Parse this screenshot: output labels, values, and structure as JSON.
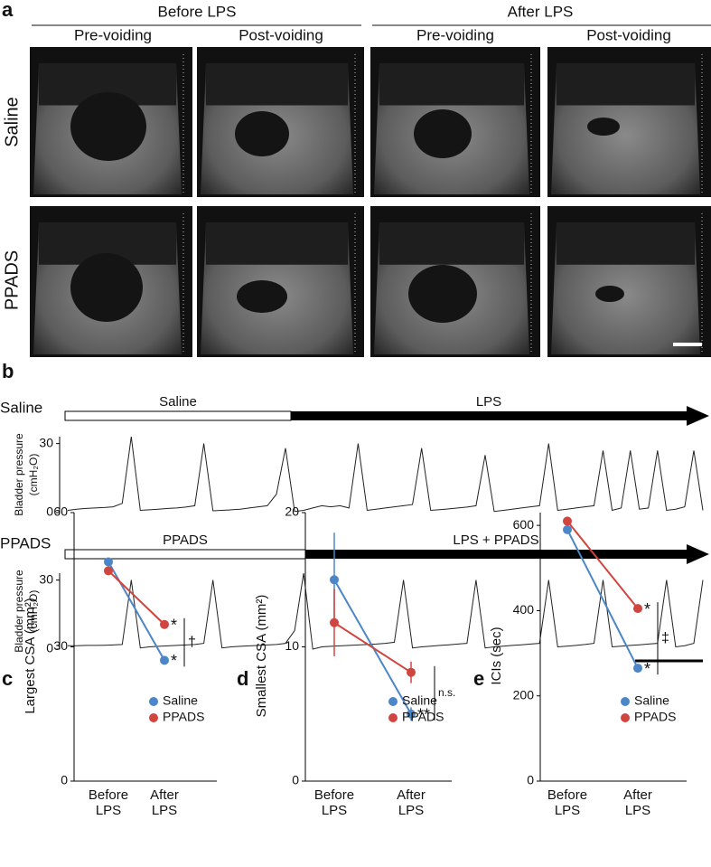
{
  "panel_labels": [
    "a",
    "b",
    "c",
    "d",
    "e"
  ],
  "panel_a": {
    "headers": [
      "Before LPS",
      "After LPS"
    ],
    "subheaders": [
      "Pre-voiding",
      "Post-voiding",
      "Pre-voiding",
      "Post-voiding"
    ],
    "rows": [
      "Saline",
      "PPADS"
    ]
  },
  "panel_b": {
    "rows": [
      {
        "label": "Saline",
        "phases": [
          "Saline",
          "LPS"
        ]
      },
      {
        "label": "PPADS",
        "phases": [
          "PPADS",
          "LPS + PPADS"
        ]
      }
    ]
  },
  "chart_data": [
    {
      "type": "trace",
      "ylabel": "Bladder pressure",
      "ylabel_unit": "(cmH₂O)",
      "ylim": [
        0,
        33
      ],
      "yticks": [
        0,
        30
      ],
      "color": "#222222",
      "values": [
        1,
        1.5,
        1.8,
        2,
        2.2,
        2.5,
        4,
        33,
        1,
        1.2,
        1.5,
        1.8,
        2,
        2.4,
        3,
        30,
        0.8,
        1,
        1.2,
        1.5,
        2,
        2.5,
        3,
        8,
        28,
        0.5,
        1,
        2,
        3,
        2.5,
        3,
        2,
        30,
        1,
        1.5,
        2,
        2.5,
        3,
        3.5,
        28,
        1,
        1.3,
        1.6,
        2,
        2.4,
        3,
        25,
        0.5,
        1,
        1.5,
        2,
        2.5,
        3,
        30,
        1,
        1.5,
        2,
        2.5,
        3,
        27,
        1,
        2,
        27,
        1.5,
        2,
        27,
        1,
        1.5,
        2.5,
        27,
        1
      ]
    },
    {
      "type": "trace",
      "ylabel": "Bladder pressure",
      "ylabel_unit": "(cmH₂O)",
      "ylim": [
        0,
        33
      ],
      "yticks": [
        0,
        30
      ],
      "color": "#222222",
      "values": [
        1.5,
        1.5,
        1.6,
        1.6,
        1.7,
        1.8,
        2,
        30,
        0.5,
        1,
        1.2,
        1.4,
        1.6,
        1.8,
        2,
        2.5,
        30,
        0.5,
        1,
        1.2,
        1.4,
        1.6,
        1.8,
        2,
        2.5,
        8,
        33,
        0,
        1,
        1.2,
        1.4,
        1.6,
        1.8,
        2,
        2.2,
        2.5,
        3,
        30,
        0.5,
        1,
        1.3,
        1.6,
        1.9,
        2.2,
        2.5,
        30,
        0.5,
        1,
        1.3,
        1.6,
        1.9,
        2.2,
        2.5,
        30,
        1,
        1.3,
        1.6,
        2,
        2.5,
        30,
        1,
        1.3,
        1.6,
        1.9,
        2.2,
        2.5,
        30,
        1,
        1.5,
        2.5,
        30
      ]
    },
    {
      "type": "line",
      "ylabel": "Largest CSA (mm²)",
      "categories": [
        "Before LPS",
        "After LPS"
      ],
      "ylim": [
        0,
        60
      ],
      "yticks": [
        0,
        30,
        60
      ],
      "series": [
        {
          "name": "Saline",
          "color": "#4a86c8",
          "values": [
            49,
            27
          ]
        },
        {
          "name": "PPADS",
          "color": "#d0453f",
          "values": [
            47,
            35
          ]
        }
      ],
      "annotations": [
        "*",
        "*",
        "†"
      ]
    },
    {
      "type": "line",
      "ylabel": "Smallest CSA (mm²)",
      "categories": [
        "Before LPS",
        "After LPS"
      ],
      "ylim": [
        0,
        20
      ],
      "yticks": [
        0,
        10,
        20
      ],
      "series": [
        {
          "name": "Saline",
          "color": "#4a86c8",
          "values": [
            15,
            5
          ],
          "errors": [
            3.5,
            0.5
          ]
        },
        {
          "name": "PPADS",
          "color": "#d0453f",
          "values": [
            11.8,
            8.1
          ],
          "errors": [
            2.5,
            0.8
          ]
        }
      ],
      "annotations": [
        "**",
        "n.s."
      ]
    },
    {
      "type": "line",
      "ylabel": "ICIs (sec)",
      "categories": [
        "Before LPS",
        "After LPS"
      ],
      "ylim": [
        0,
        630
      ],
      "yticks": [
        0,
        200,
        400,
        600
      ],
      "series": [
        {
          "name": "Saline",
          "color": "#4a86c8",
          "values": [
            590,
            265
          ]
        },
        {
          "name": "PPADS",
          "color": "#d0453f",
          "values": [
            610,
            405
          ]
        }
      ],
      "annotations": [
        "*",
        "*",
        "‡"
      ]
    }
  ]
}
